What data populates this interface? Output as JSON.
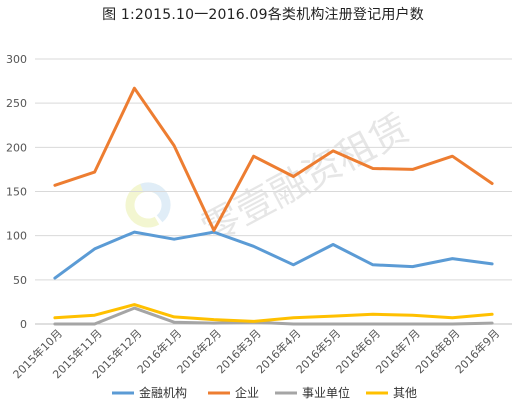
{
  "chart_data": {
    "type": "line",
    "title": "图 1:2015.10一2016.09各类机构注册登记用户数",
    "categories": [
      "2015年10月",
      "2015年11月",
      "2015年12月",
      "2016年1月",
      "2016年2月",
      "2016年3月",
      "2016年4月",
      "2016年5月",
      "2016年6月",
      "2016年7月",
      "2016年8月",
      "2016年9月"
    ],
    "series": [
      {
        "name": "金融机构",
        "color": "#5b9bd5",
        "values": [
          52,
          85,
          104,
          96,
          104,
          88,
          67,
          90,
          67,
          65,
          74,
          68
        ]
      },
      {
        "name": "企业",
        "color": "#ed7d31",
        "values": [
          157,
          172,
          267,
          202,
          106,
          190,
          167,
          196,
          176,
          175,
          190,
          159
        ]
      },
      {
        "name": "事业单位",
        "color": "#a5a5a5",
        "values": [
          0,
          0,
          18,
          2,
          1,
          2,
          0,
          0,
          0,
          0,
          0,
          1
        ]
      },
      {
        "name": "其他",
        "color": "#ffc000",
        "values": [
          7,
          10,
          22,
          8,
          5,
          3,
          7,
          9,
          11,
          10,
          7,
          11
        ]
      }
    ],
    "ylim": [
      0,
      300
    ],
    "yticks": [
      0,
      50,
      100,
      150,
      200,
      250,
      300
    ],
    "grid": true,
    "legend_position": "bottom",
    "xlabel": "",
    "ylabel": ""
  },
  "watermark": {
    "text": "零壹融资租赁",
    "logo_colors": [
      "#e6ed9a",
      "#bcd9ee"
    ]
  }
}
